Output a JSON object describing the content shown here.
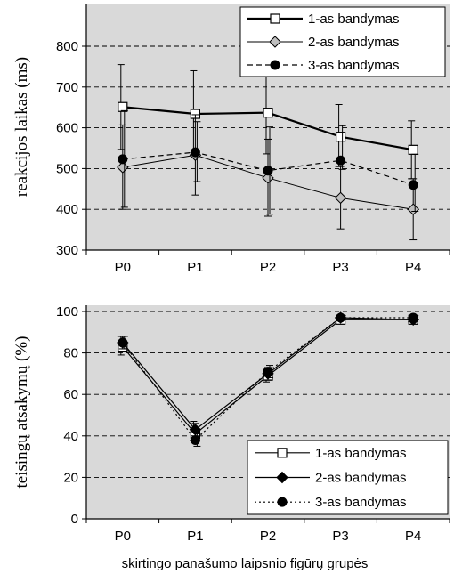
{
  "chart_data": [
    {
      "type": "line",
      "categories": [
        "P0",
        "P1",
        "P2",
        "P3",
        "P4"
      ],
      "ylabel": "reakcijos laikas (ms)",
      "xlabel": "",
      "ylim": [
        300,
        850
      ],
      "yticks": [
        300,
        400,
        500,
        600,
        700,
        800
      ],
      "grid": "horizontal dashed",
      "background": "#d9d9d9",
      "legend_position": "top-right",
      "series": [
        {
          "name": "1-as bandymas",
          "marker": "open-square",
          "line": "solid-thick",
          "values": [
            651,
            634,
            637,
            578,
            546
          ],
          "err_low": [
            547,
            533,
            536,
            505,
            475
          ],
          "err_high": [
            755,
            740,
            738,
            657,
            617
          ]
        },
        {
          "name": "2-as bandymas",
          "marker": "diamond-gray",
          "line": "solid-thin",
          "values": [
            503,
            533,
            477,
            428,
            400
          ],
          "err_low": [
            400,
            435,
            383,
            352,
            325
          ],
          "err_high": [
            607,
            632,
            572,
            505,
            475
          ]
        },
        {
          "name": "3-as bandymas",
          "marker": "filled-circle",
          "line": "dashed",
          "values": [
            523,
            540,
            495,
            520,
            460
          ],
          "err_low": [
            405,
            468,
            388,
            498,
            395
          ],
          "err_high": [
            642,
            615,
            602,
            605,
            535
          ]
        }
      ]
    },
    {
      "type": "line",
      "categories": [
        "P0",
        "P1",
        "P2",
        "P3",
        "P4"
      ],
      "ylabel": "teisingų atsakymų (%)",
      "xlabel": "skirtingo panašumo laipsnio figūrų grupės",
      "ylim": [
        0,
        105
      ],
      "yticks": [
        0,
        20,
        40,
        60,
        80,
        100
      ],
      "grid": "horizontal dashed",
      "background": "#d9d9d9",
      "legend_position": "bottom-right",
      "series": [
        {
          "name": "1-as bandymas",
          "marker": "open-square",
          "line": "solid",
          "values": [
            83,
            41,
            69,
            96,
            96
          ],
          "err_low": [
            79,
            38,
            66,
            95,
            95
          ],
          "err_high": [
            88,
            47,
            72,
            97,
            97
          ]
        },
        {
          "name": "2-as bandymas",
          "marker": "filled-diamond",
          "line": "solid",
          "values": [
            85,
            43,
            70,
            97,
            96
          ],
          "err_low": [
            82,
            40,
            67,
            96,
            95
          ],
          "err_high": [
            88,
            46,
            73,
            98,
            97
          ]
        },
        {
          "name": "3-as bandymas",
          "marker": "filled-circle",
          "line": "dotted",
          "values": [
            85,
            38,
            71,
            97,
            97
          ],
          "err_low": [
            82,
            35,
            68,
            96,
            96
          ],
          "err_high": [
            88,
            41,
            74,
            98,
            98
          ]
        }
      ]
    }
  ]
}
